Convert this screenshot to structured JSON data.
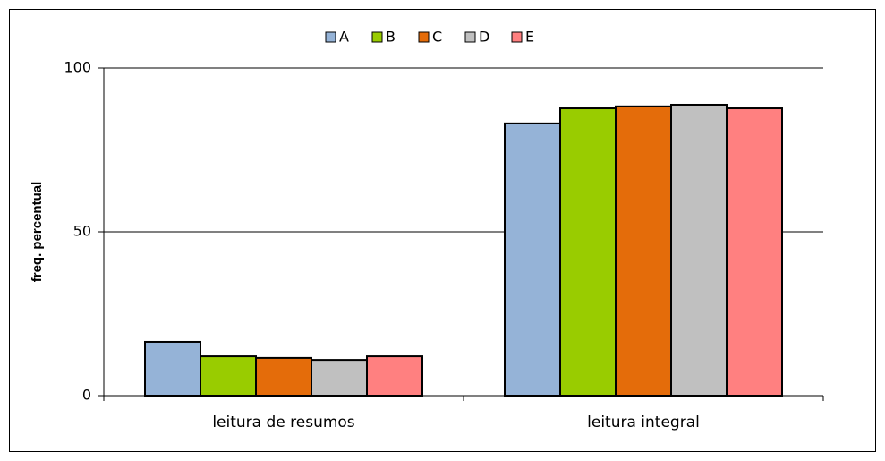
{
  "chart_data": {
    "type": "bar",
    "y_label": "freq. percentual",
    "categories": [
      "leitura de resumos",
      "leitura integral"
    ],
    "series": [
      {
        "name": "A",
        "color": "#95b3d7",
        "values": [
          16.4,
          83.1
        ]
      },
      {
        "name": "B",
        "color": "#99cc00",
        "values": [
          12.0,
          87.7
        ]
      },
      {
        "name": "C",
        "color": "#e46c0a",
        "values": [
          11.5,
          88.3
        ]
      },
      {
        "name": "D",
        "color": "#c0c0c0",
        "values": [
          10.9,
          88.8
        ]
      },
      {
        "name": "E",
        "color": "#ff8080",
        "values": [
          12.0,
          87.7
        ]
      }
    ],
    "ylim": [
      0,
      100
    ],
    "yticks": [
      0,
      50,
      100
    ],
    "grid": true,
    "legend": "top"
  }
}
